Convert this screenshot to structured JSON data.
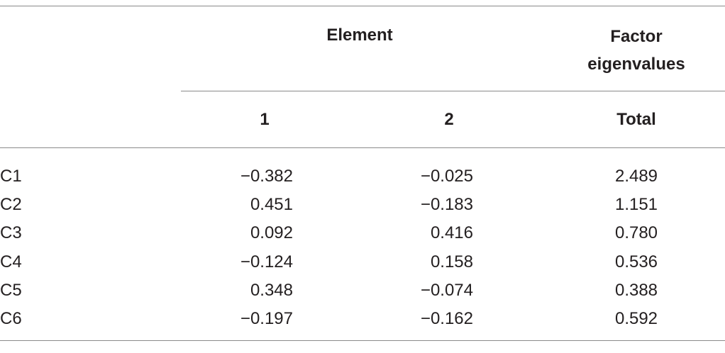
{
  "table": {
    "header": {
      "group": "Element",
      "factor": "Factor eigenvalues",
      "columns": [
        "1",
        "2",
        "Total"
      ]
    },
    "rows": [
      [
        "C1",
        "−0.382",
        "−0.025",
        "2.489"
      ],
      [
        "C2",
        "0.451",
        "−0.183",
        "1.151"
      ],
      [
        "C3",
        "0.092",
        "0.416",
        "0.780"
      ],
      [
        "C4",
        "−0.124",
        "0.158",
        "0.536"
      ],
      [
        "C5",
        "0.348",
        "−0.074",
        "0.388"
      ],
      [
        "C6",
        "−0.197",
        "−0.162",
        "0.592"
      ]
    ]
  }
}
